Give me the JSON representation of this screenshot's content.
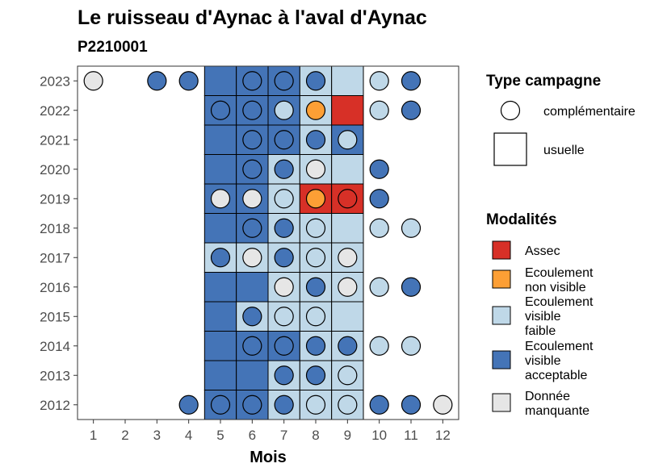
{
  "chart_data": {
    "type": "heatmap",
    "title": "Le ruisseau d'Aynac à l'aval d'Aynac",
    "subtitle": "P2210001",
    "xlabel": "Mois",
    "ylabel": "",
    "x_ticks": [
      1,
      2,
      3,
      4,
      5,
      6,
      7,
      8,
      9,
      10,
      11,
      12
    ],
    "y_ticks": [
      2012,
      2013,
      2014,
      2015,
      2016,
      2017,
      2018,
      2019,
      2020,
      2021,
      2022,
      2023
    ],
    "xlim": [
      0.5,
      12.5
    ],
    "ylim": [
      2011.5,
      2023.5
    ],
    "colors": {
      "assec": "#d73027",
      "non_visible": "#fd9f35",
      "faible": "#bfd8e8",
      "acceptable": "#4474b7",
      "manquante": "#e6e6e6"
    },
    "legend_campaign": {
      "title": "Type campagne",
      "items": [
        {
          "key": "complementaire",
          "label": "complémentaire"
        },
        {
          "key": "usuelle",
          "label": "usuelle"
        }
      ]
    },
    "legend_modalites": {
      "title": "Modalités",
      "items": [
        {
          "key": "assec",
          "label_lines": [
            "Assec"
          ]
        },
        {
          "key": "non_visible",
          "label_lines": [
            "Ecoulement",
            "non visible"
          ]
        },
        {
          "key": "faible",
          "label_lines": [
            "Ecoulement",
            "visible",
            "faible"
          ]
        },
        {
          "key": "acceptable",
          "label_lines": [
            "Ecoulement",
            "visible",
            "acceptable"
          ]
        },
        {
          "key": "manquante",
          "label_lines": [
            "Donnée",
            "manquante"
          ]
        }
      ]
    },
    "usuelle": [
      {
        "year": 2023,
        "month": 5,
        "modalite": "acceptable"
      },
      {
        "year": 2023,
        "month": 6,
        "modalite": "acceptable"
      },
      {
        "year": 2023,
        "month": 7,
        "modalite": "acceptable"
      },
      {
        "year": 2023,
        "month": 8,
        "modalite": "faible"
      },
      {
        "year": 2023,
        "month": 9,
        "modalite": "faible"
      },
      {
        "year": 2022,
        "month": 5,
        "modalite": "acceptable"
      },
      {
        "year": 2022,
        "month": 6,
        "modalite": "acceptable"
      },
      {
        "year": 2022,
        "month": 7,
        "modalite": "acceptable"
      },
      {
        "year": 2022,
        "month": 8,
        "modalite": "faible"
      },
      {
        "year": 2022,
        "month": 9,
        "modalite": "assec"
      },
      {
        "year": 2021,
        "month": 5,
        "modalite": "acceptable"
      },
      {
        "year": 2021,
        "month": 6,
        "modalite": "acceptable"
      },
      {
        "year": 2021,
        "month": 7,
        "modalite": "acceptable"
      },
      {
        "year": 2021,
        "month": 8,
        "modalite": "faible"
      },
      {
        "year": 2021,
        "month": 9,
        "modalite": "acceptable"
      },
      {
        "year": 2020,
        "month": 5,
        "modalite": "acceptable"
      },
      {
        "year": 2020,
        "month": 6,
        "modalite": "acceptable"
      },
      {
        "year": 2020,
        "month": 7,
        "modalite": "faible"
      },
      {
        "year": 2020,
        "month": 8,
        "modalite": "faible"
      },
      {
        "year": 2020,
        "month": 9,
        "modalite": "faible"
      },
      {
        "year": 2019,
        "month": 5,
        "modalite": "acceptable"
      },
      {
        "year": 2019,
        "month": 6,
        "modalite": "acceptable"
      },
      {
        "year": 2019,
        "month": 7,
        "modalite": "faible"
      },
      {
        "year": 2019,
        "month": 8,
        "modalite": "assec"
      },
      {
        "year": 2019,
        "month": 9,
        "modalite": "assec"
      },
      {
        "year": 2018,
        "month": 5,
        "modalite": "acceptable"
      },
      {
        "year": 2018,
        "month": 6,
        "modalite": "acceptable"
      },
      {
        "year": 2018,
        "month": 7,
        "modalite": "faible"
      },
      {
        "year": 2018,
        "month": 8,
        "modalite": "faible"
      },
      {
        "year": 2018,
        "month": 9,
        "modalite": "faible"
      },
      {
        "year": 2017,
        "month": 5,
        "modalite": "faible"
      },
      {
        "year": 2017,
        "month": 6,
        "modalite": "faible"
      },
      {
        "year": 2017,
        "month": 7,
        "modalite": "faible"
      },
      {
        "year": 2017,
        "month": 8,
        "modalite": "faible"
      },
      {
        "year": 2017,
        "month": 9,
        "modalite": "faible"
      },
      {
        "year": 2016,
        "month": 5,
        "modalite": "acceptable"
      },
      {
        "year": 2016,
        "month": 6,
        "modalite": "acceptable"
      },
      {
        "year": 2016,
        "month": 7,
        "modalite": "faible"
      },
      {
        "year": 2016,
        "month": 8,
        "modalite": "faible"
      },
      {
        "year": 2016,
        "month": 9,
        "modalite": "faible"
      },
      {
        "year": 2015,
        "month": 5,
        "modalite": "acceptable"
      },
      {
        "year": 2015,
        "month": 6,
        "modalite": "faible"
      },
      {
        "year": 2015,
        "month": 7,
        "modalite": "faible"
      },
      {
        "year": 2015,
        "month": 8,
        "modalite": "faible"
      },
      {
        "year": 2015,
        "month": 9,
        "modalite": "faible"
      },
      {
        "year": 2014,
        "month": 5,
        "modalite": "acceptable"
      },
      {
        "year": 2014,
        "month": 6,
        "modalite": "acceptable"
      },
      {
        "year": 2014,
        "month": 7,
        "modalite": "acceptable"
      },
      {
        "year": 2014,
        "month": 8,
        "modalite": "faible"
      },
      {
        "year": 2014,
        "month": 9,
        "modalite": "faible"
      },
      {
        "year": 2013,
        "month": 5,
        "modalite": "acceptable"
      },
      {
        "year": 2013,
        "month": 6,
        "modalite": "acceptable"
      },
      {
        "year": 2013,
        "month": 7,
        "modalite": "faible"
      },
      {
        "year": 2013,
        "month": 8,
        "modalite": "faible"
      },
      {
        "year": 2013,
        "month": 9,
        "modalite": "faible"
      },
      {
        "year": 2012,
        "month": 5,
        "modalite": "acceptable"
      },
      {
        "year": 2012,
        "month": 6,
        "modalite": "acceptable"
      },
      {
        "year": 2012,
        "month": 7,
        "modalite": "faible"
      },
      {
        "year": 2012,
        "month": 8,
        "modalite": "faible"
      },
      {
        "year": 2012,
        "month": 9,
        "modalite": "faible"
      }
    ],
    "complementaire": [
      {
        "year": 2023,
        "month": 1,
        "modalite": "manquante"
      },
      {
        "year": 2023,
        "month": 3,
        "modalite": "acceptable"
      },
      {
        "year": 2023,
        "month": 4,
        "modalite": "acceptable"
      },
      {
        "year": 2023,
        "month": 6,
        "modalite": "acceptable"
      },
      {
        "year": 2023,
        "month": 7,
        "modalite": "acceptable"
      },
      {
        "year": 2023,
        "month": 8,
        "modalite": "acceptable"
      },
      {
        "year": 2023,
        "month": 10,
        "modalite": "faible"
      },
      {
        "year": 2023,
        "month": 11,
        "modalite": "acceptable"
      },
      {
        "year": 2022,
        "month": 5,
        "modalite": "acceptable"
      },
      {
        "year": 2022,
        "month": 6,
        "modalite": "acceptable"
      },
      {
        "year": 2022,
        "month": 7,
        "modalite": "faible"
      },
      {
        "year": 2022,
        "month": 8,
        "modalite": "non_visible"
      },
      {
        "year": 2022,
        "month": 10,
        "modalite": "faible"
      },
      {
        "year": 2022,
        "month": 11,
        "modalite": "acceptable"
      },
      {
        "year": 2021,
        "month": 6,
        "modalite": "acceptable"
      },
      {
        "year": 2021,
        "month": 7,
        "modalite": "acceptable"
      },
      {
        "year": 2021,
        "month": 8,
        "modalite": "acceptable"
      },
      {
        "year": 2021,
        "month": 9,
        "modalite": "faible"
      },
      {
        "year": 2020,
        "month": 6,
        "modalite": "acceptable"
      },
      {
        "year": 2020,
        "month": 7,
        "modalite": "acceptable"
      },
      {
        "year": 2020,
        "month": 8,
        "modalite": "manquante"
      },
      {
        "year": 2020,
        "month": 10,
        "modalite": "acceptable"
      },
      {
        "year": 2019,
        "month": 5,
        "modalite": "manquante"
      },
      {
        "year": 2019,
        "month": 6,
        "modalite": "manquante"
      },
      {
        "year": 2019,
        "month": 7,
        "modalite": "faible"
      },
      {
        "year": 2019,
        "month": 8,
        "modalite": "non_visible"
      },
      {
        "year": 2019,
        "month": 9,
        "modalite": "assec"
      },
      {
        "year": 2019,
        "month": 10,
        "modalite": "acceptable"
      },
      {
        "year": 2018,
        "month": 6,
        "modalite": "acceptable"
      },
      {
        "year": 2018,
        "month": 7,
        "modalite": "acceptable"
      },
      {
        "year": 2018,
        "month": 8,
        "modalite": "faible"
      },
      {
        "year": 2018,
        "month": 10,
        "modalite": "faible"
      },
      {
        "year": 2018,
        "month": 11,
        "modalite": "faible"
      },
      {
        "year": 2017,
        "month": 5,
        "modalite": "acceptable"
      },
      {
        "year": 2017,
        "month": 6,
        "modalite": "manquante"
      },
      {
        "year": 2017,
        "month": 7,
        "modalite": "acceptable"
      },
      {
        "year": 2017,
        "month": 8,
        "modalite": "faible"
      },
      {
        "year": 2017,
        "month": 9,
        "modalite": "manquante"
      },
      {
        "year": 2016,
        "month": 7,
        "modalite": "manquante"
      },
      {
        "year": 2016,
        "month": 8,
        "modalite": "acceptable"
      },
      {
        "year": 2016,
        "month": 9,
        "modalite": "manquante"
      },
      {
        "year": 2016,
        "month": 10,
        "modalite": "faible"
      },
      {
        "year": 2016,
        "month": 11,
        "modalite": "acceptable"
      },
      {
        "year": 2015,
        "month": 6,
        "modalite": "acceptable"
      },
      {
        "year": 2015,
        "month": 7,
        "modalite": "faible"
      },
      {
        "year": 2015,
        "month": 8,
        "modalite": "faible"
      },
      {
        "year": 2014,
        "month": 6,
        "modalite": "acceptable"
      },
      {
        "year": 2014,
        "month": 7,
        "modalite": "acceptable"
      },
      {
        "year": 2014,
        "month": 8,
        "modalite": "acceptable"
      },
      {
        "year": 2014,
        "month": 9,
        "modalite": "acceptable"
      },
      {
        "year": 2014,
        "month": 10,
        "modalite": "faible"
      },
      {
        "year": 2014,
        "month": 11,
        "modalite": "faible"
      },
      {
        "year": 2013,
        "month": 7,
        "modalite": "acceptable"
      },
      {
        "year": 2013,
        "month": 8,
        "modalite": "acceptable"
      },
      {
        "year": 2013,
        "month": 9,
        "modalite": "faible"
      },
      {
        "year": 2012,
        "month": 4,
        "modalite": "acceptable"
      },
      {
        "year": 2012,
        "month": 5,
        "modalite": "acceptable"
      },
      {
        "year": 2012,
        "month": 6,
        "modalite": "acceptable"
      },
      {
        "year": 2012,
        "month": 7,
        "modalite": "acceptable"
      },
      {
        "year": 2012,
        "month": 8,
        "modalite": "faible"
      },
      {
        "year": 2012,
        "month": 9,
        "modalite": "faible"
      },
      {
        "year": 2012,
        "month": 10,
        "modalite": "acceptable"
      },
      {
        "year": 2012,
        "month": 11,
        "modalite": "acceptable"
      },
      {
        "year": 2012,
        "month": 12,
        "modalite": "manquante"
      }
    ]
  }
}
